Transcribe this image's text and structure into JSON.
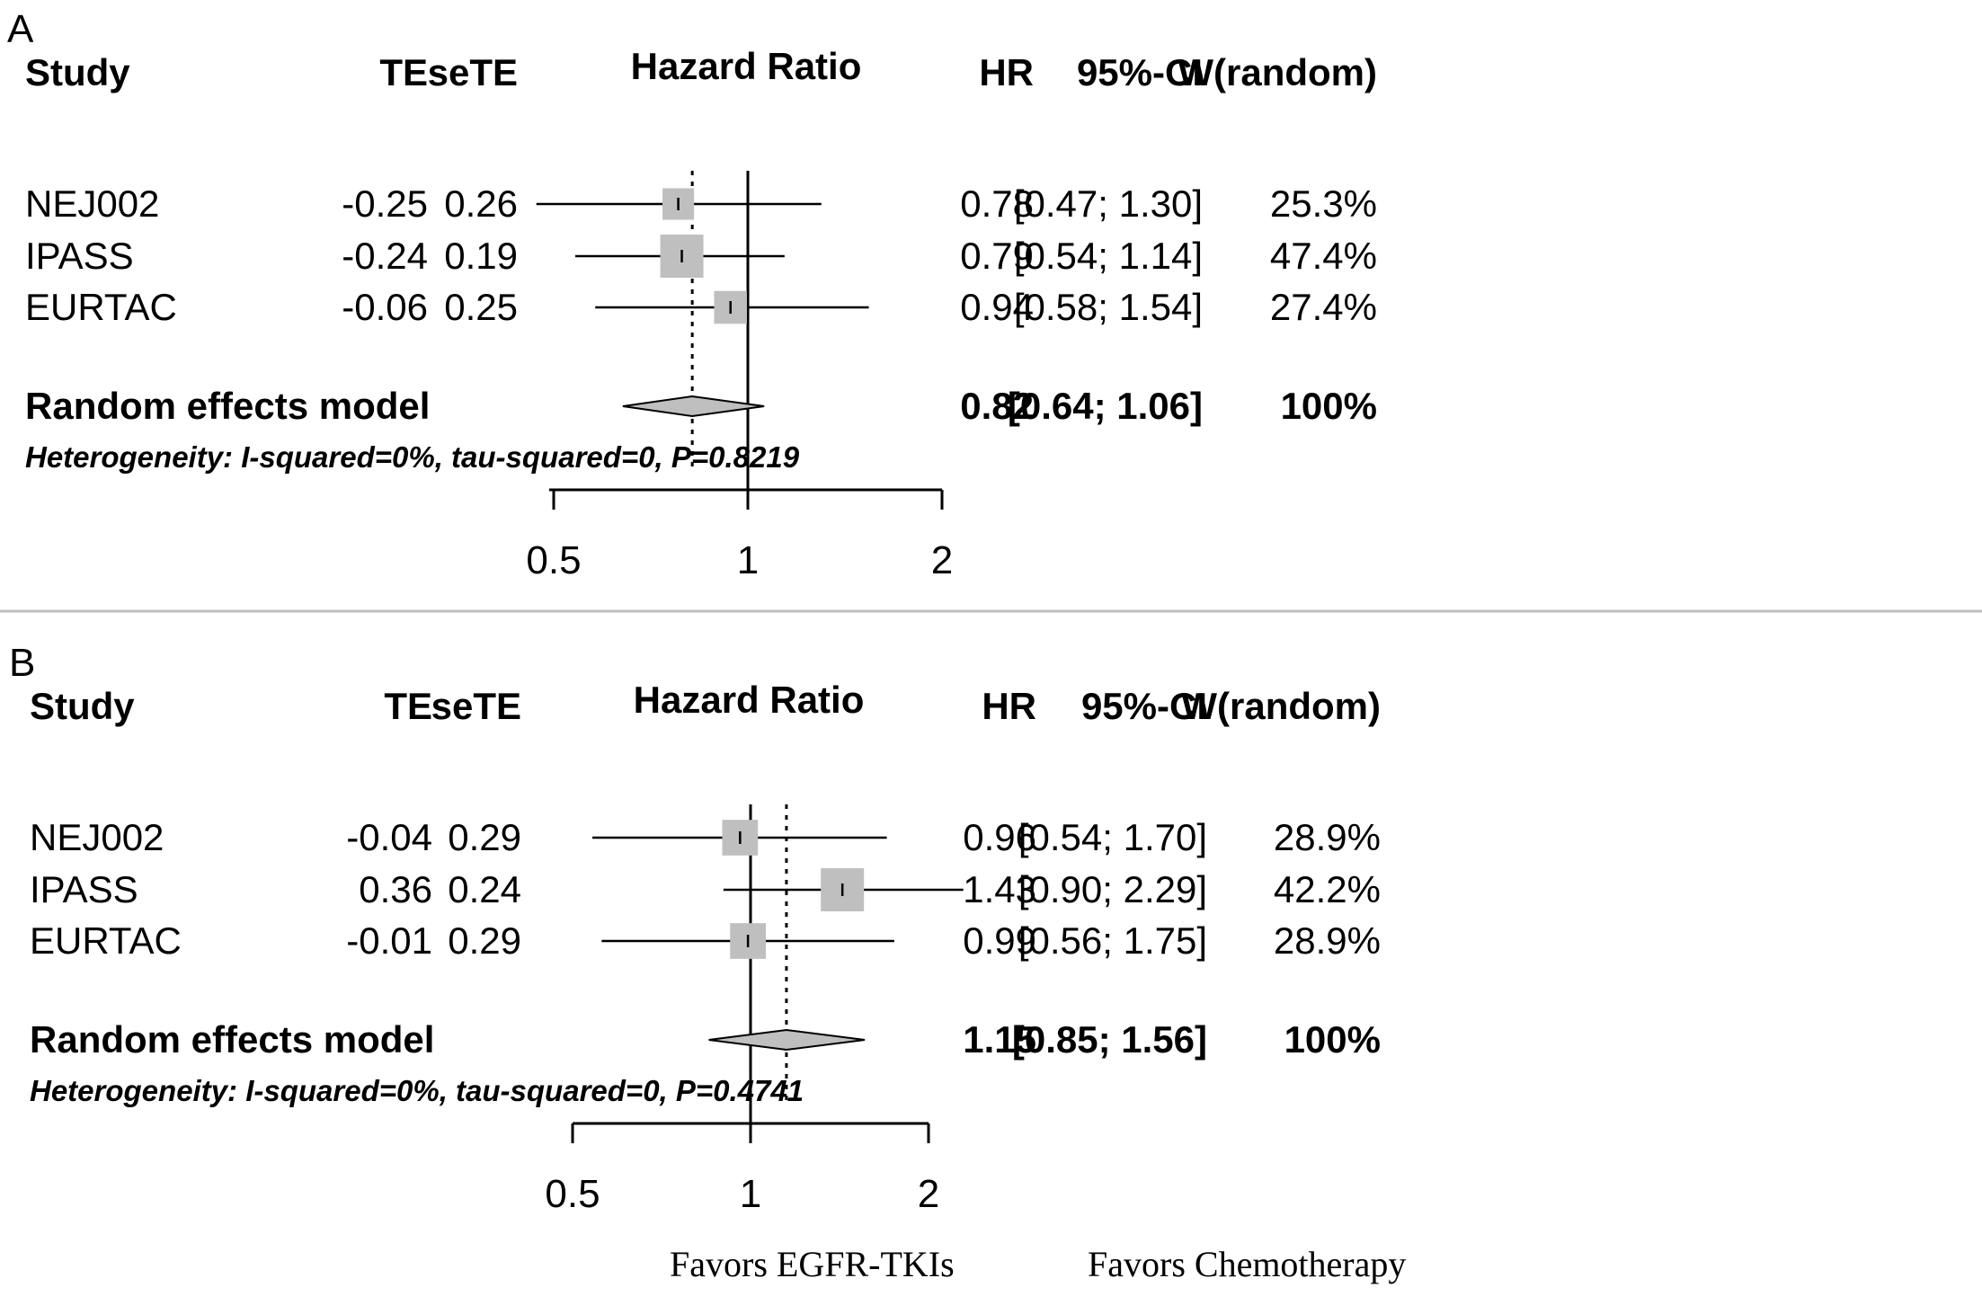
{
  "caption": {
    "left": "Favors EGFR-TKIs",
    "right": "Favors Chemotherapy"
  },
  "chart_data": [
    {
      "type": "forest",
      "panel": "A",
      "title": "Hazard Ratio",
      "columns": {
        "study": "Study",
        "te": "TE",
        "sete": "seTE",
        "hr": "HR",
        "ci": "95%-CI",
        "weight": "W(random)"
      },
      "x_scale": "log",
      "xlim": [
        0.5,
        2
      ],
      "ticks": [
        0.5,
        1,
        2
      ],
      "tick_labels": [
        "0.5",
        "1",
        "2"
      ],
      "reference_line": 1,
      "studies": [
        {
          "name": "NEJ002",
          "te": "-0.25",
          "sete": "0.26",
          "hr": 0.78,
          "lower": 0.47,
          "upper": 1.3,
          "hr_text": "0.78",
          "ci_text": "[0.47; 1.30]",
          "weight": 25.3,
          "weight_text": "25.3%"
        },
        {
          "name": "IPASS",
          "te": "-0.24",
          "sete": "0.19",
          "hr": 0.79,
          "lower": 0.54,
          "upper": 1.14,
          "hr_text": "0.79",
          "ci_text": "[0.54; 1.14]",
          "weight": 47.4,
          "weight_text": "47.4%"
        },
        {
          "name": "EURTAC",
          "te": "-0.06",
          "sete": "0.25",
          "hr": 0.94,
          "lower": 0.58,
          "upper": 1.54,
          "hr_text": "0.94",
          "ci_text": "[0.58; 1.54]",
          "weight": 27.4,
          "weight_text": "27.4%"
        }
      ],
      "summary": {
        "name": "Random effects model",
        "hr": 0.82,
        "lower": 0.64,
        "upper": 1.06,
        "hr_text": "0.82",
        "ci_text": "[0.64; 1.06]",
        "weight_text": "100%"
      },
      "heterogeneity": "Heterogeneity: I-squared=0%, tau-squared=0, P=0.8219"
    },
    {
      "type": "forest",
      "panel": "B",
      "title": "Hazard Ratio",
      "columns": {
        "study": "Study",
        "te": "TE",
        "sete": "seTE",
        "hr": "HR",
        "ci": "95%-CI",
        "weight": "W(random)"
      },
      "x_scale": "log",
      "xlim": [
        0.5,
        2
      ],
      "ticks": [
        0.5,
        1,
        2
      ],
      "tick_labels": [
        "0.5",
        "1",
        "2"
      ],
      "reference_line": 1,
      "studies": [
        {
          "name": "NEJ002",
          "te": "-0.04",
          "sete": "0.29",
          "hr": 0.96,
          "lower": 0.54,
          "upper": 1.7,
          "hr_text": "0.96",
          "ci_text": "[0.54; 1.70]",
          "weight": 28.9,
          "weight_text": "28.9%"
        },
        {
          "name": "IPASS",
          "te": "0.36",
          "sete": "0.24",
          "hr": 1.43,
          "lower": 0.9,
          "upper": 2.29,
          "hr_text": "1.43",
          "ci_text": "[0.90; 2.29]",
          "weight": 42.2,
          "weight_text": "42.2%"
        },
        {
          "name": "EURTAC",
          "te": "-0.01",
          "sete": "0.29",
          "hr": 0.99,
          "lower": 0.56,
          "upper": 1.75,
          "hr_text": "0.99",
          "ci_text": "[0.56; 1.75]",
          "weight": 28.9,
          "weight_text": "28.9%"
        }
      ],
      "summary": {
        "name": "Random effects model",
        "hr": 1.15,
        "lower": 0.85,
        "upper": 1.56,
        "hr_text": "1.15",
        "ci_text": "[0.85; 1.56]",
        "weight_text": "100%"
      },
      "heterogeneity": "Heterogeneity: I-squared=0%, tau-squared=0, P=0.4741"
    }
  ]
}
